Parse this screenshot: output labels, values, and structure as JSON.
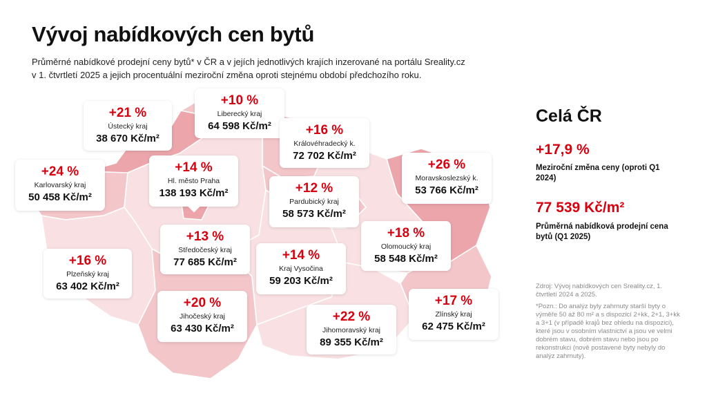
{
  "title": "Vývoj nabídkových cen bytů",
  "subtitle": {
    "line1": "Průměrné nabídkové prodejní ceny bytů* v ČR a v jejích jednotlivých krajích inzerované na portálu Sreality.cz",
    "line2": "v 1. čtvrtletí 2025 a jejich procentuální meziroční změna oproti stejnému období předchozího roku."
  },
  "colors": {
    "accent": "#d7000f",
    "map_light": "#f9e1e3",
    "map_medium": "#f3c6ca",
    "map_dark": "#eba5ab",
    "border": "#ffffff"
  },
  "regions": {
    "liberecky": {
      "change": "+10 %",
      "name": "Liberecký kraj",
      "price": "64 598 Kč/m²"
    },
    "ustecky": {
      "change": "+21 %",
      "name": "Ústecký kraj",
      "price": "38 670 Kč/m²"
    },
    "kralovehradecky": {
      "change": "+16 %",
      "name": "Královéhradecký k.",
      "price": "72 702 Kč/m²"
    },
    "karlovarsky": {
      "change": "+24 %",
      "name": "Karlovarský kraj",
      "price": "50 458 Kč/m²"
    },
    "praha": {
      "change": "+14 %",
      "name": "Hl. město Praha",
      "price": "138 193 Kč/m²"
    },
    "moravskoslezsky": {
      "change": "+26 %",
      "name": "Moravskoslezský k.",
      "price": "53 766 Kč/m²"
    },
    "pardubicky": {
      "change": "+12 %",
      "name": "Pardubický kraj",
      "price": "58 573 Kč/m²"
    },
    "stredocesky": {
      "change": "+13 %",
      "name": "Středočeský kraj",
      "price": "77 685 Kč/m²"
    },
    "olomoucky": {
      "change": "+18 %",
      "name": "Olomoucký kraj",
      "price": "58 548 Kč/m²"
    },
    "plzensky": {
      "change": "+16 %",
      "name": "Plzeňský kraj",
      "price": "63 402 Kč/m²"
    },
    "vysocina": {
      "change": "+14 %",
      "name": "Kraj Vysočina",
      "price": "59 203 Kč/m²"
    },
    "jihocesky": {
      "change": "+20 %",
      "name": "Jihočeský kraj",
      "price": "63 430 Kč/m²"
    },
    "jihomoravsky": {
      "change": "+22 %",
      "name": "Jihomoravský kraj",
      "price": "89 355 Kč/m²"
    },
    "zlinsky": {
      "change": "+17 %",
      "name": "Zlínský kraj",
      "price": "62 475 Kč/m²"
    }
  },
  "summary": {
    "title": "Celá ČR",
    "change": "+17,9 %",
    "change_label": "Meziroční změna ceny (oproti Q1 2024)",
    "price": "77 539 Kč/m²",
    "price_label": "Průměrná nabídková prodejní cena bytů (Q1 2025)"
  },
  "source": "Zdroj: Vývoj nabídkových cen Sreality.cz, 1. čtvrtletí 2024 a 2025.",
  "note": "*Pozn.: Do analýz byly zahrnuty starší byty o výměře 50 až 80 m² a s dispozicí 2+kk, 2+1, 3+kk a 3+1 (v případě krajů bez ohledu na dispozici), které jsou v osobním vlastnictví a jsou ve velmi dobrém stavu, dobrém stavu nebo jsou po rekonstrukci (nově postavené byty nebyly do analýz zahrnuty)."
}
